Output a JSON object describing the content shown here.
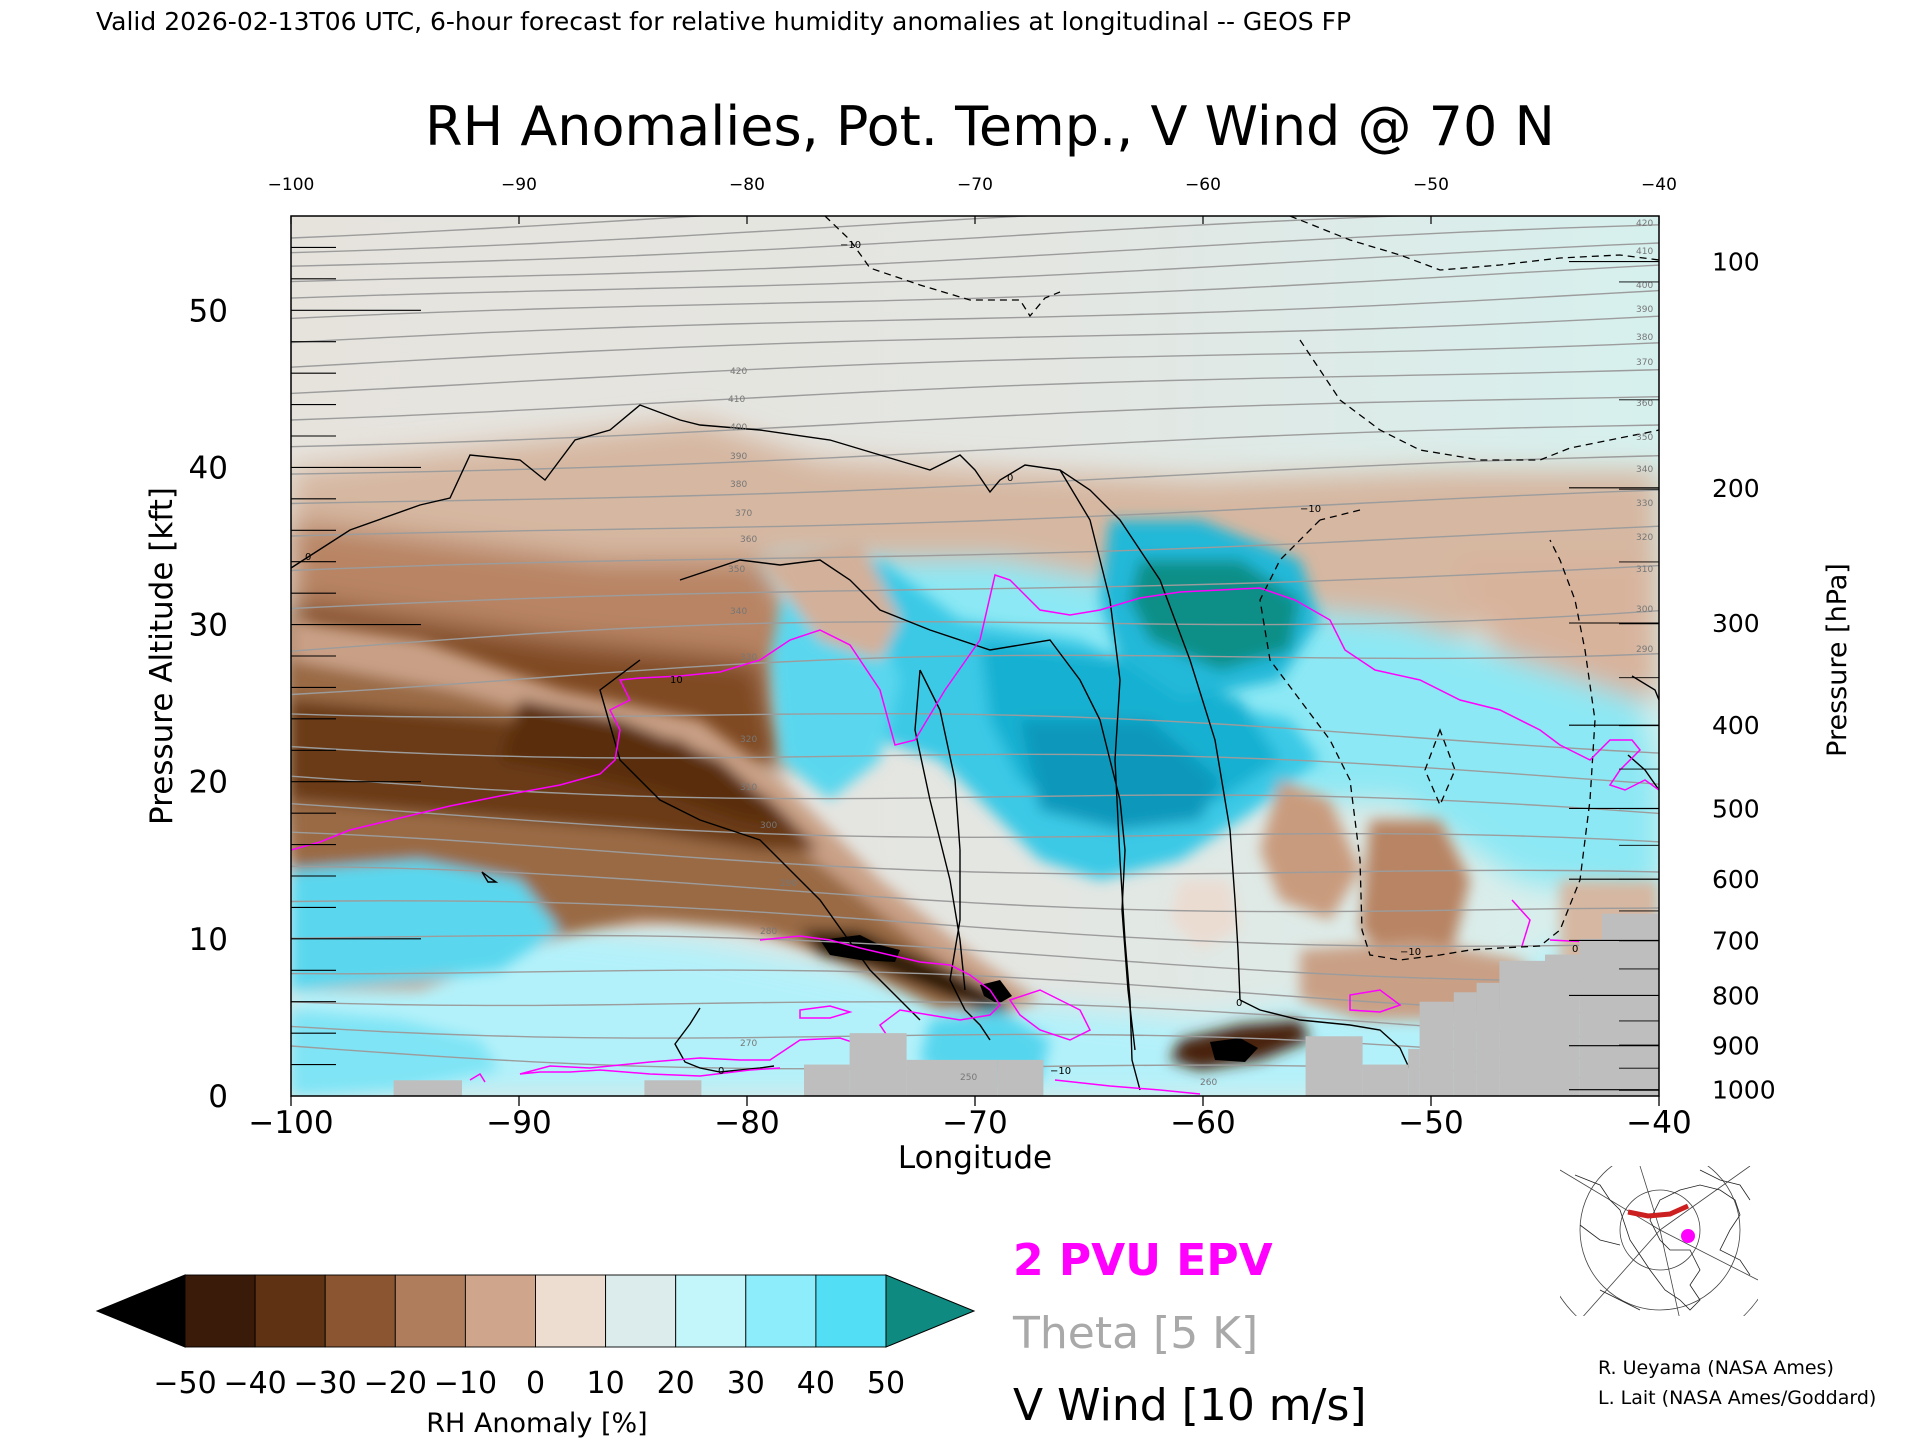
{
  "header": {
    "valid_line": "Valid 2026-02-13T06 UTC, 6-hour forecast for relative humidity anomalies at longitudinal -- GEOS FP"
  },
  "chart_data": {
    "type": "heatmap",
    "title": "RH Anomalies, Pot. Temp., V Wind @ 70 N",
    "xlabel": "Longitude",
    "ylabel_left": "Pressure Altitude [kft]",
    "ylabel_right": "Pressure [hPa]",
    "xlim": [
      -100,
      -40
    ],
    "ylim": [
      0,
      56
    ],
    "x_ticks": [
      -100,
      -90,
      -80,
      -70,
      -60,
      -50,
      -40
    ],
    "x_tick_labels": [
      "−100",
      "−90",
      "−80",
      "−70",
      "−60",
      "−50",
      "−40"
    ],
    "x_top_tick_labels": [
      "−100",
      "−90",
      "−80",
      "−70",
      "−60",
      "−50",
      "−40"
    ],
    "y_ticks": [
      0,
      10,
      20,
      30,
      40,
      50
    ],
    "y_tick_labels": [
      "0",
      "10",
      "20",
      "30",
      "40",
      "50"
    ],
    "pressure_ticks": [
      {
        "kft": 53.1,
        "label": "100"
      },
      {
        "kft": 38.7,
        "label": "200"
      },
      {
        "kft": 30.1,
        "label": "300"
      },
      {
        "kft": 23.6,
        "label": "400"
      },
      {
        "kft": 18.3,
        "label": "500"
      },
      {
        "kft": 13.8,
        "label": "600"
      },
      {
        "kft": 9.9,
        "label": "700"
      },
      {
        "kft": 6.4,
        "label": "800"
      },
      {
        "kft": 3.2,
        "label": "900"
      },
      {
        "kft": 0.4,
        "label": "1000"
      }
    ],
    "colorbar": {
      "label": "RH Anomaly [%]",
      "ticks": [
        "−50",
        "−40",
        "−30",
        "−20",
        "−10",
        "0",
        "10",
        "20",
        "30",
        "40",
        "50"
      ],
      "colors": [
        "#000000",
        "#3a1a08",
        "#5e3212",
        "#8a5530",
        "#b07d5c",
        "#cfa68c",
        "#eddcd0",
        "#dcecec",
        "#c2f6fa",
        "#8eedfa",
        "#52def5",
        "#1cc6e6",
        "#0a9ec4",
        "#0e8a80"
      ]
    },
    "fields": {
      "rh_anomaly": "filled contours (color)",
      "theta": "grey contour lines every 5 K (250–420 K labels)",
      "v_wind": "black contours every 10 m/s (solid ≥ 0, dashed < 0)",
      "epv": "magenta 2 PVU contour"
    },
    "theta_labels": [
      "250",
      "260",
      "270",
      "280",
      "290",
      "300",
      "310",
      "320",
      "330",
      "340",
      "350",
      "360",
      "370",
      "380",
      "390",
      "400",
      "410",
      "420"
    ],
    "vwind_labels": [
      "0",
      "10",
      "−10"
    ],
    "terrain": [
      {
        "x0": -95.5,
        "x1": -92.5,
        "top": 1.0
      },
      {
        "x0": -84.5,
        "x1": -82.0,
        "top": 1.0
      },
      {
        "x0": -77.5,
        "x1": -75.5,
        "top": 2.0
      },
      {
        "x0": -75.5,
        "x1": -73.0,
        "top": 4.0
      },
      {
        "x0": -73.0,
        "x1": -69.0,
        "top": 2.3
      },
      {
        "x0": -69.0,
        "x1": -67.0,
        "top": 2.3
      },
      {
        "x0": -55.5,
        "x1": -53.0,
        "top": 3.8
      },
      {
        "x0": -53.0,
        "x1": -51.0,
        "top": 2.0
      },
      {
        "x0": -51.0,
        "x1": -50.5,
        "top": 3.0
      },
      {
        "x0": -50.5,
        "x1": -49.0,
        "top": 6.0
      },
      {
        "x0": -49.0,
        "x1": -48.0,
        "top": 6.6
      },
      {
        "x0": -48.0,
        "x1": -47.0,
        "top": 7.2
      },
      {
        "x0": -47.0,
        "x1": -45.0,
        "top": 8.6
      },
      {
        "x0": -45.0,
        "x1": -43.5,
        "top": 9.0
      },
      {
        "x0": -43.5,
        "x1": -42.5,
        "top": 10.0
      },
      {
        "x0": -42.5,
        "x1": -40.0,
        "top": 11.6
      }
    ],
    "terrain_color": "#bebebe"
  },
  "legend": {
    "epv": "2 PVU EPV",
    "theta": "Theta [5 K]",
    "vwind": "V Wind [10 m/s]",
    "epv_color": "#ff00ff",
    "theta_color": "#a9a9a9",
    "vwind_color": "#000000"
  },
  "credits": {
    "line1": "R. Ueyama (NASA Ames)",
    "line2": "L. Lait (NASA Ames/Goddard)"
  },
  "inset_map": {
    "icon": "polar-projection-map-icon",
    "track_color": "#cc2020",
    "marker_color": "#ff00ff"
  }
}
